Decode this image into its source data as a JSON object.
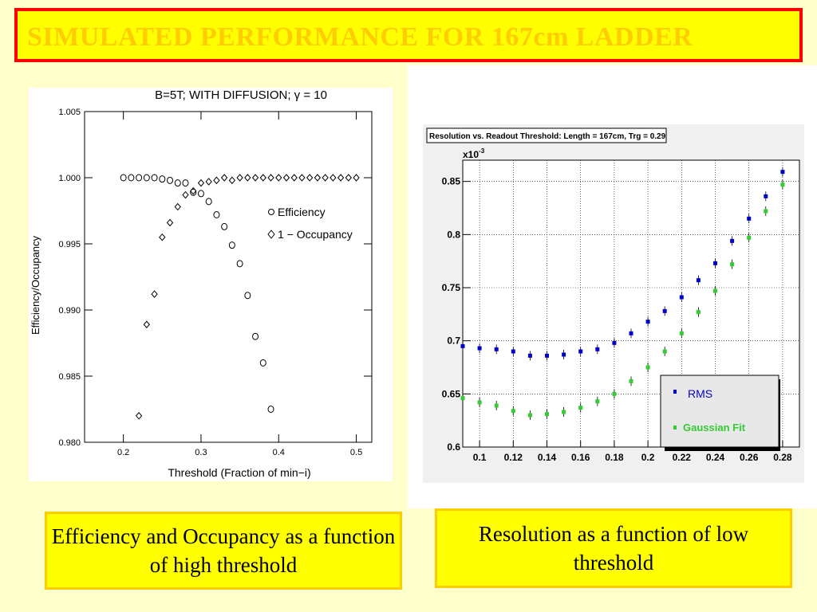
{
  "slide": {
    "title": "SIMULATED PERFORMANCE FOR 167cm LADDER",
    "caption_left": "Efficiency and Occupancy as a function of high threshold",
    "caption_right": "Resolution as a function of low threshold",
    "colors": {
      "background": "#FFFFCC",
      "title_fill": "#FFFF00",
      "title_border": "#FF0000",
      "title_text": "#FFCC00",
      "caption_border": "#FFCC00"
    }
  },
  "chart_data": [
    {
      "type": "scatter",
      "title": "B=5T; WITH DIFFUSION; γ = 10",
      "xlabel": "Threshold (Fraction of min−i)",
      "ylabel": "Efficiency/Occupancy",
      "xlim": [
        0.15,
        0.52
      ],
      "ylim": [
        0.98,
        1.005
      ],
      "xticks": [
        "0.2",
        "0.3",
        "0.4",
        "0.5"
      ],
      "yticks": [
        "1.005",
        "1.000",
        "0.995",
        "0.990",
        "0.985",
        "0.980"
      ],
      "legend_position": "right",
      "series": [
        {
          "name": "Efficiency",
          "marker": "circle",
          "x": [
            0.2,
            0.21,
            0.22,
            0.23,
            0.24,
            0.25,
            0.26,
            0.27,
            0.28,
            0.29,
            0.3,
            0.31,
            0.32,
            0.33,
            0.34,
            0.35,
            0.36,
            0.37,
            0.38,
            0.39
          ],
          "y": [
            1.0,
            1.0,
            1.0,
            1.0,
            1.0,
            0.9999,
            0.9998,
            0.9996,
            0.9996,
            0.9989,
            0.9988,
            0.9982,
            0.9972,
            0.9963,
            0.9949,
            0.9935,
            0.9911,
            0.988,
            0.986,
            0.9825
          ]
        },
        {
          "name": "1 − Occupancy",
          "marker": "diamond",
          "x": [
            0.22,
            0.23,
            0.24,
            0.25,
            0.26,
            0.27,
            0.28,
            0.29,
            0.3,
            0.31,
            0.32,
            0.33,
            0.34,
            0.35,
            0.36,
            0.37,
            0.38,
            0.39,
            0.4,
            0.41,
            0.42,
            0.43,
            0.44,
            0.45,
            0.46,
            0.47,
            0.48,
            0.49,
            0.5
          ],
          "y": [
            0.982,
            0.9889,
            0.9912,
            0.9955,
            0.9966,
            0.9978,
            0.9987,
            0.999,
            0.9996,
            0.9997,
            0.9998,
            1.0,
            0.9998,
            1.0,
            1.0,
            1.0,
            1.0,
            1.0,
            1.0,
            1.0,
            1.0,
            1.0,
            1.0,
            1.0,
            1.0,
            1.0,
            1.0,
            1.0,
            1.0
          ]
        }
      ]
    },
    {
      "type": "scatter",
      "title": "Resolution vs. Readout Threshold: Length = 167cm, Trg = 0.29",
      "xlabel": "",
      "ylabel": "",
      "y_multiplier": "x10",
      "y_multiplier_exp": "-3",
      "xlim": [
        0.09,
        0.29
      ],
      "ylim": [
        0.6,
        0.87
      ],
      "xticks": [
        "0.1",
        "0.12",
        "0.14",
        "0.16",
        "0.18",
        "0.2",
        "0.22",
        "0.24",
        "0.26",
        "0.28"
      ],
      "yticks": [
        "0.6",
        "0.65",
        "0.7",
        "0.75",
        "0.8",
        "0.85"
      ],
      "grid": true,
      "legend_position": "bottom-right",
      "series": [
        {
          "name": "RMS",
          "color": "#0000CC",
          "x": [
            0.09,
            0.1,
            0.11,
            0.12,
            0.13,
            0.14,
            0.15,
            0.16,
            0.17,
            0.18,
            0.19,
            0.2,
            0.21,
            0.22,
            0.23,
            0.24,
            0.25,
            0.26,
            0.27,
            0.28
          ],
          "y": [
            0.695,
            0.693,
            0.692,
            0.69,
            0.686,
            0.686,
            0.687,
            0.69,
            0.692,
            0.698,
            0.707,
            0.718,
            0.728,
            0.741,
            0.757,
            0.773,
            0.794,
            0.815,
            0.836,
            0.859
          ]
        },
        {
          "name": "Gaussian Fit",
          "color": "#33CC33",
          "x": [
            0.09,
            0.1,
            0.11,
            0.12,
            0.13,
            0.14,
            0.15,
            0.16,
            0.17,
            0.18,
            0.19,
            0.2,
            0.21,
            0.22,
            0.23,
            0.24,
            0.25,
            0.26,
            0.27,
            0.28
          ],
          "y": [
            0.646,
            0.642,
            0.639,
            0.634,
            0.63,
            0.631,
            0.633,
            0.637,
            0.643,
            0.65,
            0.662,
            0.675,
            0.69,
            0.707,
            0.727,
            0.747,
            0.772,
            0.797,
            0.822,
            0.847
          ]
        }
      ]
    }
  ]
}
